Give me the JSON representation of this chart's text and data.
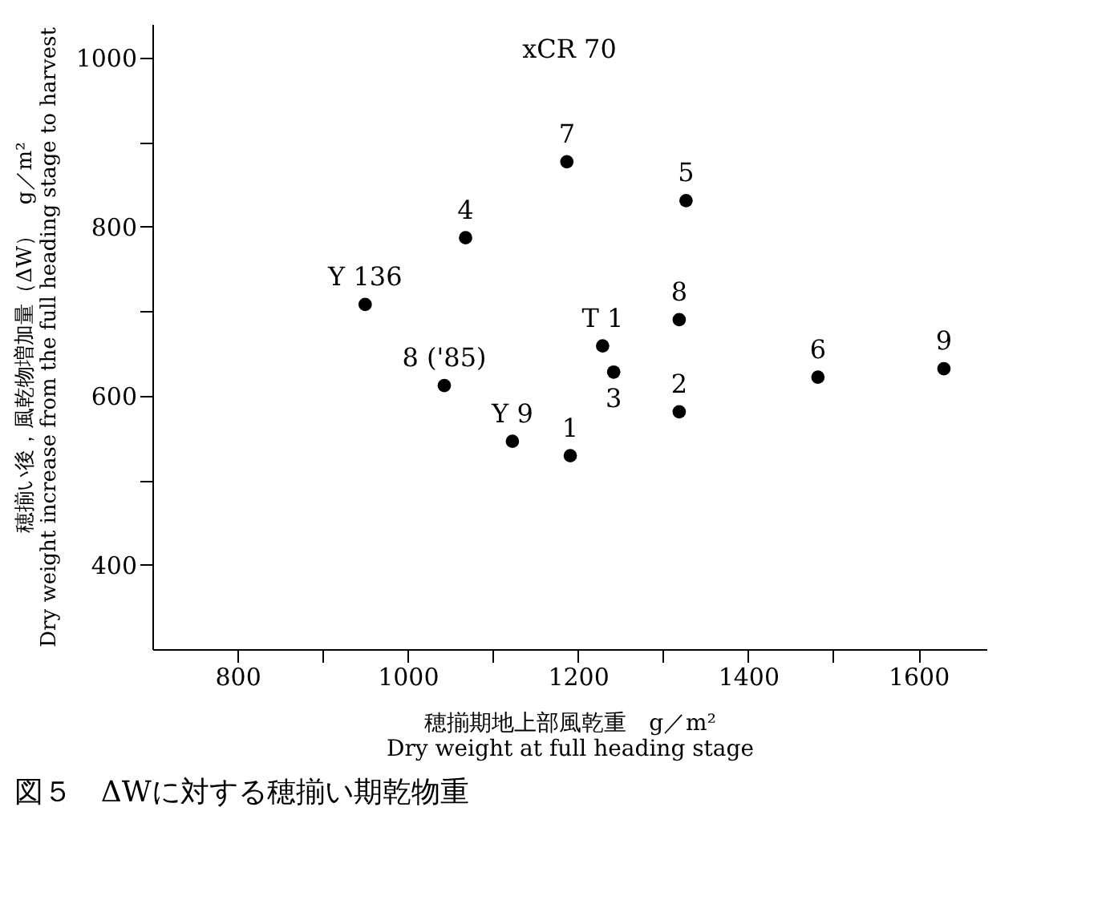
{
  "chart_data": {
    "type": "scatter",
    "title": "図５　ΔWに対する穂揃い期乾物重",
    "xlabel": "穂揃期地上部風乾重　g／m²\nDry weight at full heading stage",
    "ylabel": "穂揃い後，風乾物増加量（ΔW）　g／m²\nDry weight increase from the full heading stage to harvest",
    "x": [
      950,
      1068,
      1187,
      1327,
      1043,
      1123,
      1191,
      1229,
      1242,
      1319,
      1319,
      1482,
      1630
    ],
    "series": [
      {
        "color": "#000000",
        "values": [
          708,
          787,
          877,
          831,
          612,
          546,
          529,
          659,
          628,
          690,
          581,
          622,
          632
        ]
      }
    ],
    "xlim": [
      700,
      1680
    ],
    "xticks": [
      800,
      {
        "value": 900,
        "label": null
      },
      1000,
      {
        "value": 1100,
        "label": null
      },
      1200,
      {
        "value": 1300,
        "label": null
      },
      1400,
      {
        "value": 1500,
        "label": null
      },
      1600
    ],
    "ylim": [
      300,
      1040
    ],
    "yticks": [
      400,
      {
        "value": 500,
        "label": null
      },
      600,
      {
        "value": 700,
        "label": null
      },
      800,
      {
        "value": 900,
        "label": null
      },
      1000
    ],
    "marker": "circle",
    "grid": false,
    "annotations": [
      "xCR 70",
      {
        "text": "Y 136",
        "x": 950,
        "y": 708
      },
      {
        "text": "4",
        "x": 1068,
        "y": 787
      },
      {
        "text": "7",
        "x": 1187,
        "y": 877
      },
      {
        "text": "5",
        "x": 1327,
        "y": 831
      },
      {
        "text": "8 ('85)",
        "x": 1043,
        "y": 612
      },
      {
        "text": "Y 9",
        "x": 1123,
        "y": 546
      },
      {
        "text": "1",
        "x": 1191,
        "y": 529
      },
      {
        "text": "T 1",
        "x": 1229,
        "y": 659
      },
      {
        "text": "3",
        "x": 1242,
        "y": 628
      },
      {
        "text": "8",
        "x": 1319,
        "y": 690
      },
      {
        "text": "2",
        "x": 1319,
        "y": 581
      },
      {
        "text": "6",
        "x": 1482,
        "y": 622
      },
      {
        "text": "9",
        "x": 1630,
        "y": 632
      }
    ]
  }
}
